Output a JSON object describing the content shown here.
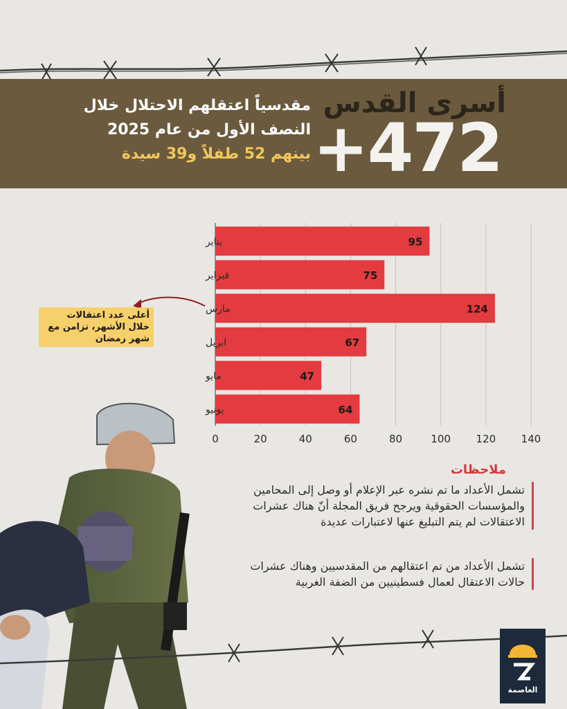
{
  "header": {
    "title": "أسرى القدس",
    "count": "+472",
    "line1": "مقدسياً اعتقلهم الاحتلال خلال",
    "line2": "النصف الأول من عام 2025",
    "line3": "بينهم 52 طفلاً و39 سيدة"
  },
  "chart_data": {
    "type": "bar",
    "orientation": "horizontal",
    "categories": [
      "يناير",
      "فبراير",
      "مارس",
      "ابريل",
      "مايو",
      "يونيو"
    ],
    "values": [
      95,
      75,
      124,
      67,
      47,
      64
    ],
    "xlim": [
      0,
      140
    ],
    "xticks": [
      0,
      20,
      40,
      60,
      80,
      100,
      120,
      140
    ],
    "bar_color": "#e33b3f",
    "grid": true
  },
  "callout": {
    "text": "أعلى عدد اعتقالات خلال الأشهر، تزامن مع شهر رمضان"
  },
  "notes": {
    "title": "ملاحظات",
    "items": [
      "تشمل الأعداد ما تم نشره عبر الإعلام أو وصل إلى المحامين والمؤسسات الحقوقية ويرجح فريق المجلة أنّ هناك عشرات الاعتقالات لم يتم التبليغ عنها لاعتبارات عديدة",
      "تشمل الأعداد من تم اعتقالهم من المقدسيين وهناك عشرات حالات الاعتقال لعمال فسطينيين من الضفة الغربية"
    ]
  },
  "logo": {
    "label": "العاصمة",
    "icon": "dome-logo-icon"
  }
}
